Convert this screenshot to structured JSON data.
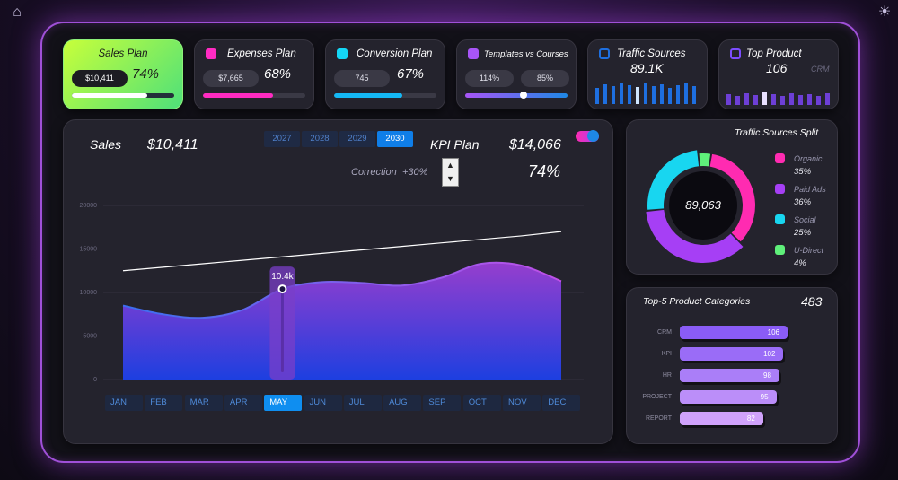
{
  "kpi_cards": [
    {
      "title": "Sales Plan",
      "pill": "$10,411",
      "percent": "74%",
      "fill": 0.74,
      "color": "#ffffff"
    },
    {
      "title": "Expenses Plan",
      "pill": "$7,665",
      "percent": "68%",
      "fill": 0.68,
      "color": "#ff2bc2"
    },
    {
      "title": "Conversion Plan",
      "pill": "745",
      "percent": "67%",
      "fill": 0.67,
      "color": "#14d6f5"
    },
    {
      "title": "Templates vs Courses",
      "pill_left": "114%",
      "pill_right": "85%",
      "fill": 0.57,
      "color": "#a855f7"
    }
  ],
  "traffic_card": {
    "title": "Traffic Sources",
    "value": "89.1K",
    "color": "#1e6fe0"
  },
  "top_product_card": {
    "title": "Top Product",
    "value": "106",
    "sub": "CRM",
    "color": "#7c4dff"
  },
  "sales_panel": {
    "sales_label": "Sales",
    "sales_value": "$10,411",
    "kpi_label": "KPI Plan",
    "kpi_value": "$14,066",
    "kpi_percent": "74%",
    "correction_label": "Correction",
    "correction_value": "+30%",
    "years": [
      "2027",
      "2028",
      "2029",
      "2030"
    ],
    "active_year": "2030",
    "months": [
      "JAN",
      "FEB",
      "MAR",
      "APR",
      "MAY",
      "JUN",
      "JUL",
      "AUG",
      "SEP",
      "OCT",
      "NOV",
      "DEC"
    ],
    "active_month": "MAY",
    "highlight_label": "10.4k"
  },
  "chart_data": {
    "type": "area",
    "x": [
      "JAN",
      "FEB",
      "MAR",
      "APR",
      "MAY",
      "JUN",
      "JUL",
      "AUG",
      "SEP",
      "OCT",
      "NOV",
      "DEC"
    ],
    "ylim": [
      0,
      20000
    ],
    "yticks": [
      "20000",
      "15000",
      "10000",
      "5000",
      "0"
    ],
    "series": [
      {
        "values": [
          8500,
          7500,
          7100,
          8000,
          10400,
          11200,
          11100,
          10800,
          11700,
          13300,
          13100,
          11300
        ]
      },
      {
        "values": [
          12500,
          12900,
          13300,
          13700,
          14100,
          14500,
          14900,
          15300,
          15700,
          16100,
          16500,
          17000
        ]
      }
    ],
    "colors": {
      "area_top": "#9b3fd6",
      "area_bottom": "#1d3fe0",
      "target_line": "#ffffff"
    }
  },
  "traffic_split": {
    "title": "Traffic Sources Split",
    "total": "89,063",
    "items": [
      {
        "name": "Organic",
        "value": "35%",
        "share": 35,
        "color": "#ff2bb1"
      },
      {
        "name": "Paid Ads",
        "value": "36%",
        "share": 36,
        "color": "#a63ff5"
      },
      {
        "name": "Social",
        "value": "25%",
        "share": 25,
        "color": "#18d6f0"
      },
      {
        "name": "U-Direct",
        "value": "4%",
        "share": 4,
        "color": "#5ff07a"
      }
    ]
  },
  "top_products": {
    "title": "Top-5 Product Categories",
    "total": "483",
    "items": [
      {
        "name": "CRM",
        "value": "106",
        "num": 106,
        "color": "#8a5cf6"
      },
      {
        "name": "KPI",
        "value": "102",
        "num": 102,
        "color": "#9a6cf7"
      },
      {
        "name": "HR",
        "value": "98",
        "num": 98,
        "color": "#aa7ef8"
      },
      {
        "name": "PROJECT",
        "value": "95",
        "num": 95,
        "color": "#bb8ef9"
      },
      {
        "name": "REPORT",
        "value": "82",
        "num": 82,
        "color": "#d0a2fb"
      }
    ]
  },
  "icons": {
    "home": "home-icon",
    "theme": "sun-icon"
  }
}
